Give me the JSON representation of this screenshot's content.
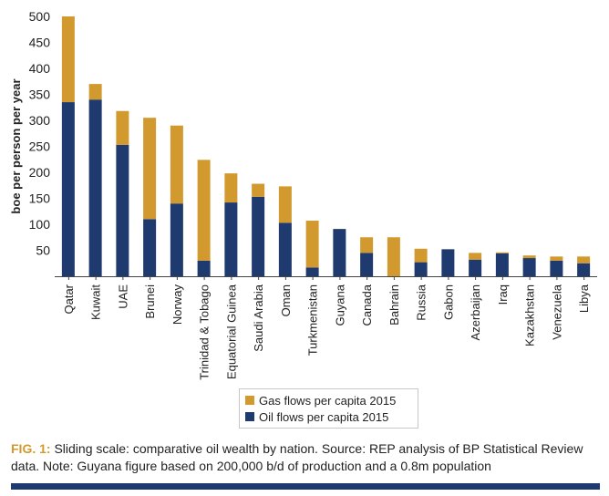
{
  "figure": {
    "label": "FIG. 1:",
    "caption": "Sliding scale: comparative oil wealth by nation. Source: REP analysis of BP Statistical Review data. Note: Guyana figure based on 200,000 b/d of production and a 0.8m population"
  },
  "chart_data": {
    "type": "bar",
    "stacked": true,
    "ylabel": "boe per person per year",
    "xlabel": "",
    "ylim": [
      0,
      500
    ],
    "yticks": [
      50,
      100,
      150,
      200,
      250,
      300,
      350,
      400,
      450,
      500
    ],
    "grid": false,
    "legend_position": "bottom-center",
    "categories": [
      "Qatar",
      "Kuwait",
      "UAE",
      "Brunei",
      "Norway",
      "Trinidad & Tobago",
      "Equatorial Guinea",
      "Saudi Arabia",
      "Oman",
      "Turkmenistan",
      "Guyana",
      "Canada",
      "Bahrain",
      "Russia",
      "Gabon",
      "Azerbaijan",
      "Iraq",
      "Kazakhstan",
      "Venezuela",
      "Libya"
    ],
    "series": [
      {
        "name": "Oil flows per capita 2015",
        "color": "#1f3a6e",
        "values": [
          335,
          340,
          253,
          110,
          140,
          30,
          142,
          153,
          103,
          17,
          91,
          45,
          0,
          27,
          52,
          32,
          44,
          35,
          30,
          25
        ]
      },
      {
        "name": "Gas flows per capita 2015",
        "color": "#d29a2e",
        "values": [
          165,
          30,
          65,
          195,
          150,
          194,
          56,
          25,
          70,
          90,
          0,
          30,
          75,
          26,
          0,
          13,
          2,
          5,
          8,
          13
        ]
      }
    ],
    "legend": [
      {
        "label": "Gas flows per capita 2015",
        "color": "#d29a2e"
      },
      {
        "label": "Oil flows per capita 2015",
        "color": "#1f3a6e"
      }
    ]
  }
}
